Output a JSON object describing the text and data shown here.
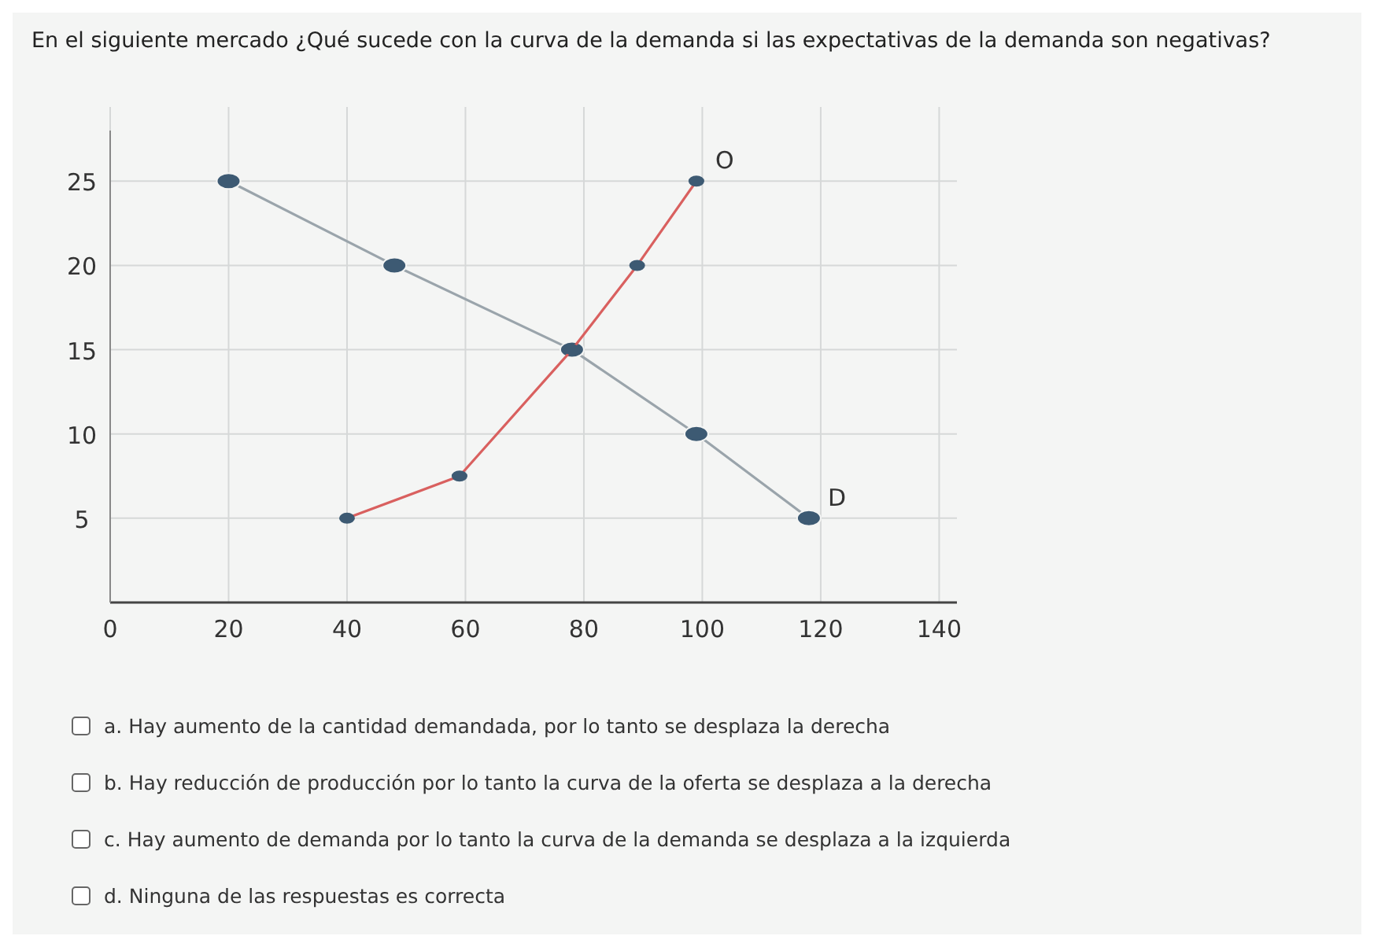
{
  "chart_data": {
    "type": "line",
    "title": "En el siguiente mercado ¿Qué sucede con la curva de la demanda si las expectativas de la demanda son negativas?",
    "series": [
      {
        "name": "D",
        "color": "#9aa4ab",
        "x": [
          20,
          48,
          78,
          99,
          118
        ],
        "values": [
          25,
          20,
          15,
          10,
          5
        ]
      },
      {
        "name": "O",
        "color": "#d9605f",
        "x": [
          40,
          59,
          78,
          89,
          99
        ],
        "values": [
          5,
          7.5,
          15,
          20,
          25
        ]
      }
    ],
    "xlim": [
      0,
      143
    ],
    "xticks": [
      0,
      20,
      40,
      60,
      80,
      100,
      120,
      140
    ],
    "ylim": [
      0,
      28
    ],
    "yticks": [
      5,
      10,
      15,
      20,
      25
    ],
    "grid": true,
    "marker": "circle",
    "line_style": "solid",
    "annotations": [
      "a. Hay aumento de la cantidad demandada, por lo tanto se desplaza la derecha",
      "b. Hay reducción de producción por lo tanto la curva de la oferta se desplaza a la derecha",
      "c. Hay aumento de demanda por lo tanto la curva de la demanda se desplaza a la izquierda",
      "d. Ninguna de las respuestas es correcta"
    ]
  }
}
